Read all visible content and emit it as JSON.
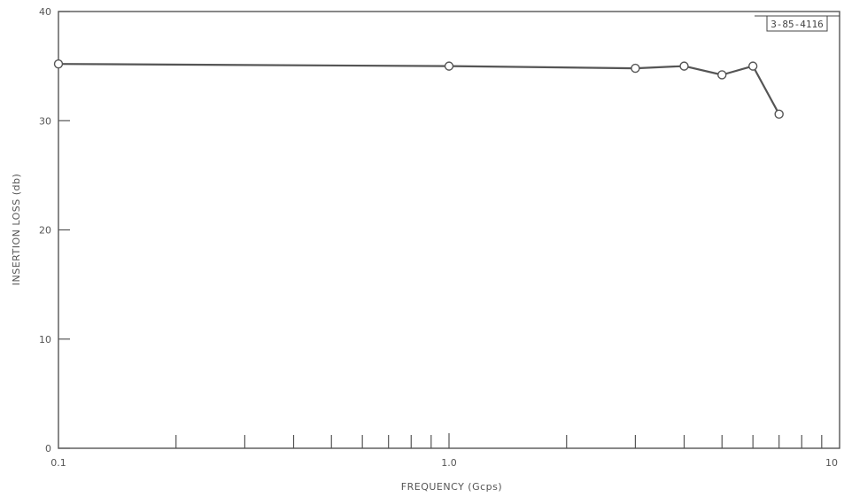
{
  "chart_data": {
    "type": "line",
    "title": "",
    "xlabel": "FREQUENCY (Gcps)",
    "ylabel": "INSERTION LOSS (db)",
    "x_scale": "log",
    "xlim": [
      0.1,
      10
    ],
    "ylim": [
      0,
      40
    ],
    "x_tick_labels": [
      {
        "value": 0.1,
        "label": "0.1"
      },
      {
        "value": 1.0,
        "label": "1.0"
      },
      {
        "value": 10,
        "label": "10"
      }
    ],
    "x_minor_ticks": [
      0.2,
      0.3,
      0.4,
      0.5,
      0.6,
      0.7,
      0.8,
      0.9,
      2,
      3,
      4,
      5,
      6,
      7,
      8,
      9
    ],
    "y_ticks": [
      0,
      10,
      20,
      30,
      40
    ],
    "y_tick_labels": [
      "0",
      "10",
      "20",
      "30",
      "40"
    ],
    "grid": false,
    "series": [
      {
        "x": [
          0.1,
          1.0,
          3.0,
          4.0,
          5.0,
          6.0,
          7.0
        ],
        "y": [
          35.2,
          35.0,
          34.8,
          35.0,
          34.2,
          35.0,
          30.6
        ],
        "marker": "open-circle",
        "color": "#555555"
      }
    ],
    "annotations": [
      {
        "text": "3-85-4116",
        "position": "top-right"
      }
    ]
  }
}
